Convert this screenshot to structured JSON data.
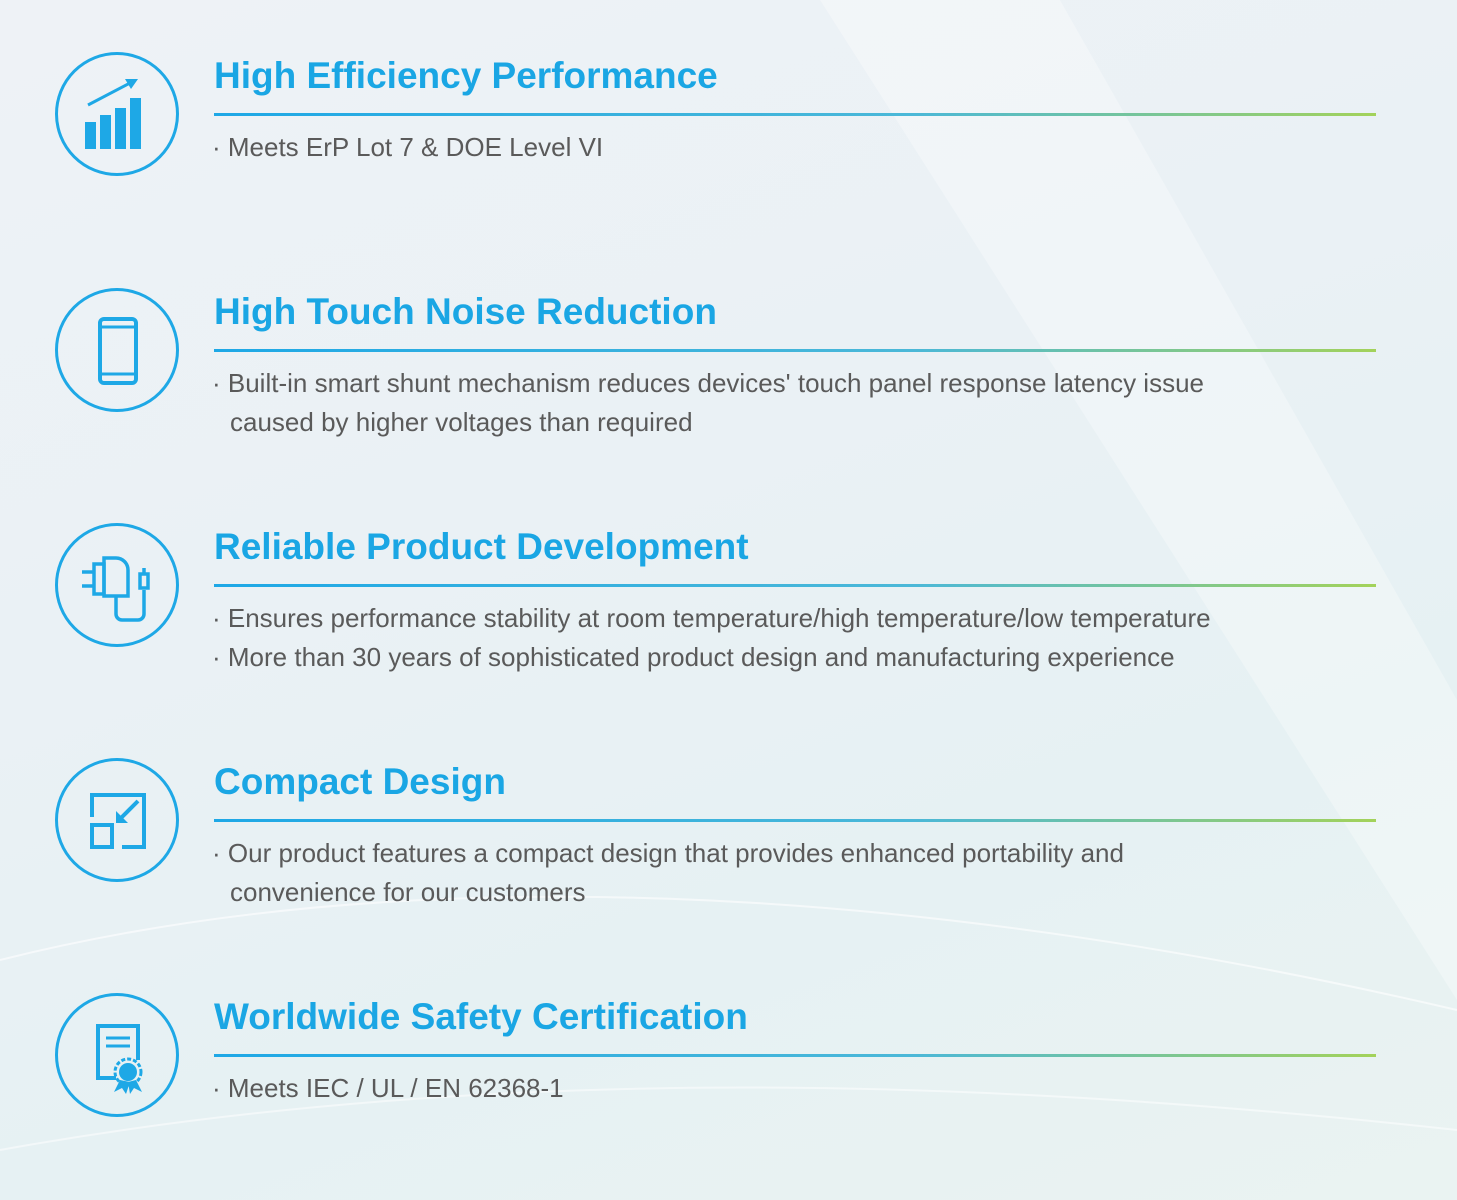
{
  "accent_color": "#1aa6e4",
  "features": [
    {
      "icon": "bar-chart-growth-icon",
      "title": "High Efficiency Performance",
      "bullets": [
        "· Meets ErP Lot 7 & DOE Level VI"
      ]
    },
    {
      "icon": "smartphone-icon",
      "title": "High Touch Noise Reduction",
      "bullets": [
        "· Built-in smart shunt mechanism reduces devices' touch panel response latency issue",
        "caused by higher voltages than required"
      ]
    },
    {
      "icon": "power-adapter-icon",
      "title": "Reliable Product Development",
      "bullets": [
        "· Ensures performance stability at room temperature/high temperature/low temperature",
        "· More than 30 years of sophisticated product  design and manufacturing experience"
      ]
    },
    {
      "icon": "compact-resize-icon",
      "title": "Compact Design",
      "bullets": [
        "· Our product features a compact design that provides enhanced portability and",
        "convenience for our customers"
      ]
    },
    {
      "icon": "certificate-icon",
      "title": "Worldwide Safety Certification",
      "bullets": [
        "· Meets IEC / UL / EN 62368-1"
      ]
    }
  ]
}
